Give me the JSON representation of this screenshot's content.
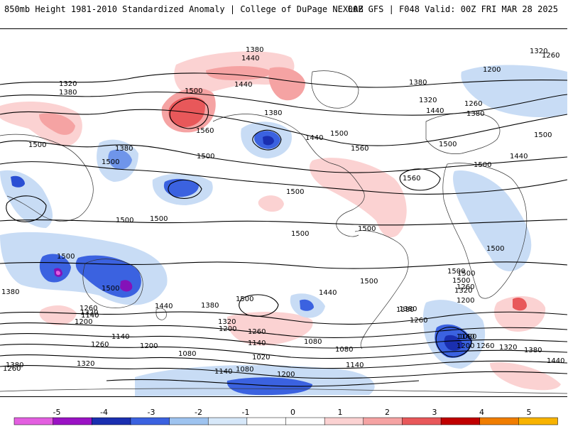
{
  "header": {
    "title": "850mb Height 1981-2010 Standardized Anomaly | College of DuPage NEXLAB",
    "run_info": "00Z GFS | F048 Valid: 00Z FRI MAR 28 2025"
  },
  "contour_labels": [
    {
      "id": "c1",
      "text": "1380"
    },
    {
      "id": "c2",
      "text": "1440"
    },
    {
      "id": "c3",
      "text": "1320"
    },
    {
      "id": "c4",
      "text": "1260"
    },
    {
      "id": "c5",
      "text": "1320"
    },
    {
      "id": "c6",
      "text": "1380"
    },
    {
      "id": "c7",
      "text": "1500"
    },
    {
      "id": "c8",
      "text": "1560"
    },
    {
      "id": "c9",
      "text": "1440"
    },
    {
      "id": "c10",
      "text": "1380"
    },
    {
      "id": "c11",
      "text": "1500"
    },
    {
      "id": "c12",
      "text": "1440"
    },
    {
      "id": "c13",
      "text": "1380"
    },
    {
      "id": "c14",
      "text": "1500"
    },
    {
      "id": "c15",
      "text": "1560"
    },
    {
      "id": "c16",
      "text": "1500"
    },
    {
      "id": "c17",
      "text": "1500"
    },
    {
      "id": "c18",
      "text": "1380"
    },
    {
      "id": "c19",
      "text": "1200"
    },
    {
      "id": "c20",
      "text": "1320"
    },
    {
      "id": "c21",
      "text": "1440"
    },
    {
      "id": "c22",
      "text": "1260"
    },
    {
      "id": "c23",
      "text": "1380"
    },
    {
      "id": "c24",
      "text": "1560"
    },
    {
      "id": "c25",
      "text": "1500"
    },
    {
      "id": "c26",
      "text": "1500"
    },
    {
      "id": "c27",
      "text": "1440"
    },
    {
      "id": "c28",
      "text": "1500"
    },
    {
      "id": "c29",
      "text": "1500"
    },
    {
      "id": "c30",
      "text": "1500"
    },
    {
      "id": "c31",
      "text": "1500"
    },
    {
      "id": "c32",
      "text": "1500"
    },
    {
      "id": "c33",
      "text": "1500"
    },
    {
      "id": "c34",
      "text": "1500"
    },
    {
      "id": "c35",
      "text": "1500"
    },
    {
      "id": "c36",
      "text": "1500"
    },
    {
      "id": "c37",
      "text": "1500"
    },
    {
      "id": "c38",
      "text": "1380"
    },
    {
      "id": "c39",
      "text": "1500"
    },
    {
      "id": "c40",
      "text": "1440"
    },
    {
      "id": "c41",
      "text": "1380"
    },
    {
      "id": "c42",
      "text": "1500"
    },
    {
      "id": "c43",
      "text": "1500"
    },
    {
      "id": "c44",
      "text": "1440"
    },
    {
      "id": "c45",
      "text": "1320"
    },
    {
      "id": "c46",
      "text": "1380"
    },
    {
      "id": "c47",
      "text": "1320"
    },
    {
      "id": "c48",
      "text": "1260"
    },
    {
      "id": "c49",
      "text": "1140"
    },
    {
      "id": "c50",
      "text": "1200"
    },
    {
      "id": "c51",
      "text": "1260"
    },
    {
      "id": "c52",
      "text": "1200"
    },
    {
      "id": "c53",
      "text": "1140"
    },
    {
      "id": "c54",
      "text": "1140"
    },
    {
      "id": "c55",
      "text": "1080"
    },
    {
      "id": "c56",
      "text": "1080"
    },
    {
      "id": "c57",
      "text": "1260"
    },
    {
      "id": "c58",
      "text": "1200"
    },
    {
      "id": "c59",
      "text": "1080"
    },
    {
      "id": "c60",
      "text": "1020"
    },
    {
      "id": "c61",
      "text": "1080"
    },
    {
      "id": "c62",
      "text": "1140"
    },
    {
      "id": "c63",
      "text": "1200"
    },
    {
      "id": "c64",
      "text": "1080"
    },
    {
      "id": "c65",
      "text": "1200"
    },
    {
      "id": "c66",
      "text": "1260"
    },
    {
      "id": "c67",
      "text": "1320"
    },
    {
      "id": "c68",
      "text": "1380"
    },
    {
      "id": "c69",
      "text": "1440"
    },
    {
      "id": "c70",
      "text": "1380"
    },
    {
      "id": "c71",
      "text": "1320"
    },
    {
      "id": "c72",
      "text": "1260"
    },
    {
      "id": "c73",
      "text": "1140"
    },
    {
      "id": "c74",
      "text": "1320"
    },
    {
      "id": "c75",
      "text": "1260"
    },
    {
      "id": "c76",
      "text": "1380"
    },
    {
      "id": "c77",
      "text": "1500"
    },
    {
      "id": "c78",
      "text": "1200"
    },
    {
      "id": "c79",
      "text": "1260"
    },
    {
      "id": "c80",
      "text": "1140"
    }
  ],
  "colorbar": {
    "ticks": [
      "-5",
      "-4",
      "-3",
      "-2",
      "-1",
      "0",
      "1",
      "2",
      "3",
      "4",
      "5"
    ],
    "colors": [
      "#e35fe0",
      "#9a12c4",
      "#1a2fb0",
      "#3b62e0",
      "#9ec3ef",
      "#d7e8f9",
      "#ffffff",
      "#ffffff",
      "#fbd2d2",
      "#f5a3a3",
      "#e8585a",
      "#c00000",
      "#f07d00",
      "#f8b300"
    ]
  },
  "colors": {
    "pos1": "#fbd2d2",
    "pos2": "#f5a3a3",
    "pos3": "#e8585a",
    "neg1": "#c8dcf5",
    "neg2": "#6f95ea",
    "neg3": "#2a4fd4",
    "neg4": "#8412b8",
    "neg5": "#e35fe0"
  }
}
